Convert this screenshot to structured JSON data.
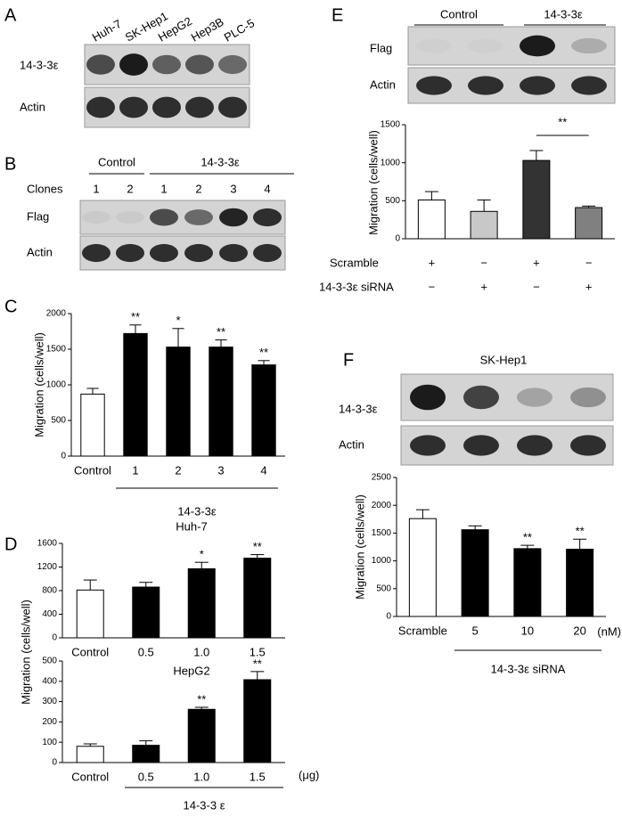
{
  "panel_letters": [
    "A",
    "B",
    "C",
    "D",
    "E",
    "F"
  ],
  "blots": {
    "A": {
      "lanes": [
        "Huh-7",
        "SK-Hep1",
        "HepG2",
        "Hep3B",
        "PLC-5"
      ],
      "rows": [
        "14-3-3ε",
        "Actin"
      ]
    },
    "B": {
      "groups": [
        "Control",
        "14-3-3ε"
      ],
      "clones_label": "Clones",
      "clones": [
        1,
        2,
        1,
        2,
        3,
        4
      ],
      "rows": [
        "Flag",
        "Actin"
      ]
    },
    "E": {
      "groups": [
        "Control",
        "14-3-3ε"
      ],
      "rows": [
        "Flag",
        "Actin"
      ]
    },
    "F": {
      "title": "SK-Hep1",
      "rows": [
        "14-3-3ε",
        "Actin"
      ]
    }
  },
  "chart_data": [
    {
      "type": "bar",
      "y_label": "Migration (cells/well)",
      "categories": [
        "Control",
        "1",
        "2",
        "3",
        "4"
      ],
      "values": [
        870,
        1720,
        1530,
        1530,
        1280
      ],
      "errors": [
        80,
        120,
        260,
        100,
        60
      ],
      "annotations": [
        null,
        "**",
        "*",
        "**",
        "**"
      ],
      "colors": [
        "#ffffff",
        "#000000",
        "#000000",
        "#000000",
        "#000000"
      ],
      "ylim": [
        0,
        2000
      ],
      "yticks": [
        0,
        500,
        1000,
        1500,
        2000
      ],
      "group_label": "14-3-3ε"
    },
    {
      "type": "bar",
      "title": "Huh-7",
      "y_label": "Migration (cells/well)",
      "categories": [
        "Control",
        "0.5",
        "1.0",
        "1.5"
      ],
      "values": [
        810,
        860,
        1170,
        1350
      ],
      "errors": [
        170,
        80,
        110,
        60
      ],
      "annotations": [
        null,
        null,
        "*",
        "**"
      ],
      "colors": [
        "#ffffff",
        "#000000",
        "#000000",
        "#000000"
      ],
      "ylim": [
        0,
        1600
      ],
      "yticks": [
        0,
        400,
        800,
        1200,
        1600
      ]
    },
    {
      "type": "bar",
      "title": "HepG2",
      "categories": [
        "Control",
        "0.5",
        "1.0",
        "1.5"
      ],
      "values": [
        80,
        85,
        262,
        408
      ],
      "errors": [
        12,
        22,
        10,
        40
      ],
      "annotations": [
        null,
        null,
        "**",
        "**"
      ],
      "colors": [
        "#ffffff",
        "#000000",
        "#000000",
        "#000000"
      ],
      "ylim": [
        0,
        500
      ],
      "yticks": [
        0,
        100,
        200,
        300,
        400,
        500
      ],
      "unit": "(μg)",
      "group_label": "14-3-3 ε"
    },
    {
      "type": "bar",
      "y_label": "Migration (cells/well)",
      "values": [
        510,
        360,
        1030,
        410
      ],
      "errors": [
        110,
        150,
        130,
        20
      ],
      "colors": [
        "#ffffff",
        "#c8c8c8",
        "#333333",
        "#808080"
      ],
      "ylim": [
        0,
        1500
      ],
      "yticks": [
        0,
        500,
        1000,
        1500
      ],
      "bracket_label": "**",
      "conditions": [
        {
          "name": "Scramble",
          "values": [
            "+",
            "−",
            "+",
            "−"
          ]
        },
        {
          "name": "14-3-3ε siRNA",
          "values": [
            "−",
            "+",
            "−",
            "+"
          ]
        }
      ]
    },
    {
      "type": "bar",
      "y_label": "Migration (cells/well)",
      "categories": [
        "Scramble",
        "5",
        "10",
        "20"
      ],
      "values": [
        1760,
        1560,
        1220,
        1210
      ],
      "errors": [
        160,
        70,
        60,
        180
      ],
      "annotations": [
        null,
        null,
        "**",
        "**"
      ],
      "colors": [
        "#ffffff",
        "#000000",
        "#000000",
        "#000000"
      ],
      "ylim": [
        0,
        2500
      ],
      "yticks": [
        0,
        500,
        1000,
        1500,
        2000,
        2500
      ],
      "unit": "(nM)",
      "group_label": "14-3-3ε siRNA"
    }
  ]
}
